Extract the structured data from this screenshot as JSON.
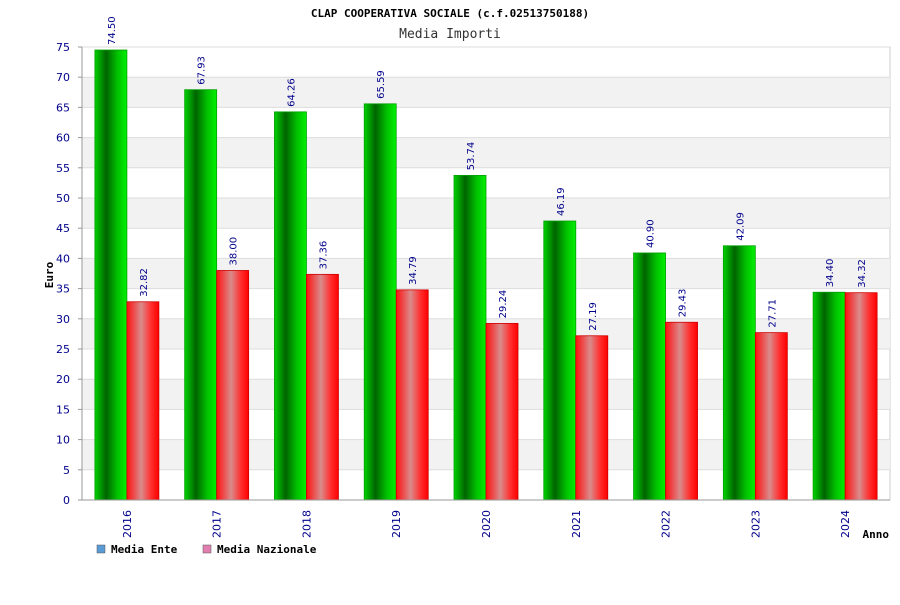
{
  "chart_data": {
    "type": "bar",
    "title": "CLAP COOPERATIVA SOCIALE (c.f.02513750188)",
    "subtitle": "Media Importi",
    "xlabel": "Anno",
    "ylabel": "Euro",
    "ylim": [
      0,
      75
    ],
    "yticks": [
      0,
      5,
      10,
      15,
      20,
      25,
      30,
      35,
      40,
      45,
      50,
      55,
      60,
      65,
      70,
      75
    ],
    "grid": true,
    "legend_position": "bottom-left",
    "categories": [
      "2016",
      "2017",
      "2018",
      "2019",
      "2020",
      "2021",
      "2022",
      "2023",
      "2024"
    ],
    "series": [
      {
        "name": "Media Ente",
        "values": [
          74.5,
          67.93,
          64.26,
          65.59,
          53.74,
          46.19,
          40.9,
          42.09,
          34.4
        ],
        "labels": [
          "74.50",
          "67.93",
          "64.26",
          "65.59",
          "53.74",
          "46.19",
          "40.90",
          "42.09",
          "34.40"
        ],
        "color": "#00c000",
        "legend_color": "#5b9bd5"
      },
      {
        "name": "Media Nazionale",
        "values": [
          32.82,
          38.0,
          37.36,
          34.79,
          29.24,
          27.19,
          29.43,
          27.71,
          34.32
        ],
        "labels": [
          "32.82",
          "38.00",
          "37.36",
          "34.79",
          "29.24",
          "27.19",
          "29.43",
          "27.71",
          "34.32"
        ],
        "color": "#ff0000",
        "legend_color": "#e07fb0"
      }
    ]
  }
}
